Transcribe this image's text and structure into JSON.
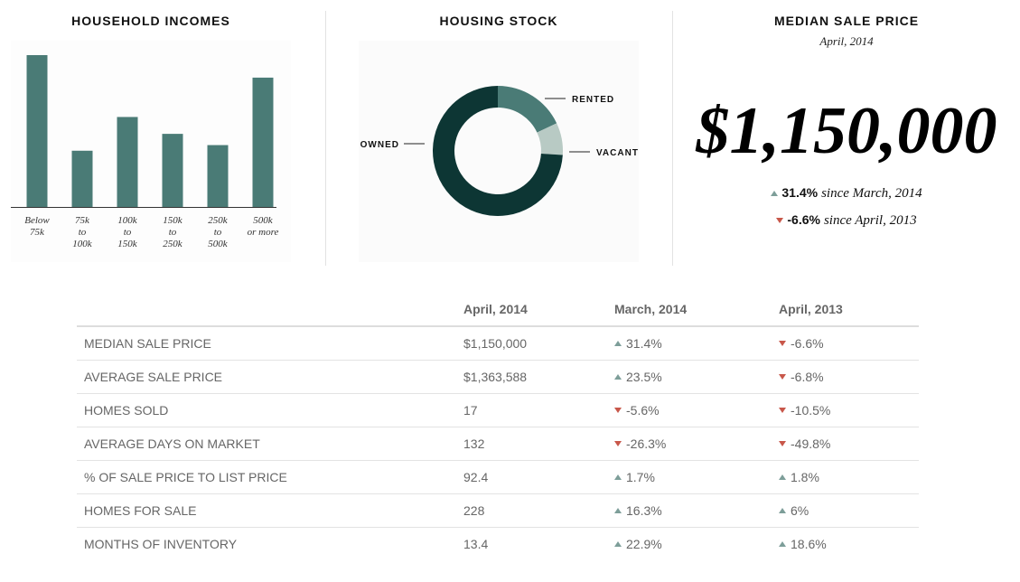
{
  "chart_data": [
    {
      "type": "bar",
      "title": "HOUSEHOLD INCOMES",
      "categories": [
        "Below\n75k",
        "75k\nto\n100k",
        "100k\nto\n150k",
        "150k\nto\n250k",
        "250k\nto\n500k",
        "500k\nor more"
      ],
      "values": [
        27,
        10,
        16,
        13,
        11,
        23
      ],
      "color": "#4a7b76"
    },
    {
      "type": "pie",
      "title": "HOUSING STOCK",
      "categories": [
        "RENTED",
        "VACANT",
        "OWNED"
      ],
      "values": [
        18,
        8,
        74
      ],
      "colors": [
        "#4a7b76",
        "#b8cac4",
        "#0d3634"
      ]
    }
  ],
  "median_sale_price": {
    "title": "MEDIAN SALE PRICE",
    "date": "April, 2014",
    "value": "$1,150,000",
    "changes": [
      {
        "value": "31.4%",
        "label": "since March, 2014",
        "direction": "up"
      },
      {
        "value": "-6.6%",
        "label": "since April, 2013",
        "direction": "down"
      }
    ]
  },
  "table": {
    "columns": [
      "April, 2014",
      "March, 2014",
      "April, 2013"
    ],
    "rows": [
      {
        "label": "MEDIAN SALE PRICE",
        "value": "$1,150,000",
        "changes": [
          {
            "text": "31.4%",
            "direction": "up"
          },
          {
            "text": "-6.6%",
            "direction": "down"
          }
        ]
      },
      {
        "label": "AVERAGE SALE PRICE",
        "value": "$1,363,588",
        "changes": [
          {
            "text": "23.5%",
            "direction": "up"
          },
          {
            "text": "-6.8%",
            "direction": "down"
          }
        ]
      },
      {
        "label": "HOMES SOLD",
        "value": "17",
        "changes": [
          {
            "text": "-5.6%",
            "direction": "down"
          },
          {
            "text": "-10.5%",
            "direction": "down"
          }
        ]
      },
      {
        "label": "AVERAGE DAYS ON MARKET",
        "value": "132",
        "changes": [
          {
            "text": "-26.3%",
            "direction": "down"
          },
          {
            "text": "-49.8%",
            "direction": "down"
          }
        ]
      },
      {
        "label": "% OF SALE PRICE TO LIST PRICE",
        "value": "92.4",
        "changes": [
          {
            "text": "1.7%",
            "direction": "up"
          },
          {
            "text": "1.8%",
            "direction": "up"
          }
        ]
      },
      {
        "label": "HOMES FOR SALE",
        "value": "228",
        "changes": [
          {
            "text": "16.3%",
            "direction": "up"
          },
          {
            "text": "6%",
            "direction": "up"
          }
        ]
      },
      {
        "label": "MONTHS OF INVENTORY",
        "value": "13.4",
        "changes": [
          {
            "text": "22.9%",
            "direction": "up"
          },
          {
            "text": "18.6%",
            "direction": "up"
          }
        ]
      }
    ]
  }
}
